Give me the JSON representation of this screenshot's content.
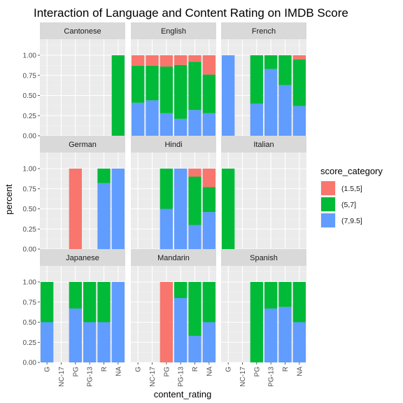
{
  "chart_data": {
    "type": "bar",
    "stacked": true,
    "title": "Interaction of Language and Content Rating on IMDB Score",
    "xlabel": "content_rating",
    "ylabel": "percent",
    "ylim": [
      0,
      1.2
    ],
    "yticks": [
      "0.00",
      "0.25",
      "0.50",
      "0.75",
      "1.00"
    ],
    "categories": [
      "G",
      "NC-17",
      "PG",
      "PG-13",
      "R",
      "NA"
    ],
    "legend": {
      "title": "score_category",
      "position": "right",
      "entries": [
        {
          "label": "(1.5,5]",
          "color": "#F8766D"
        },
        {
          "label": "(5,7]",
          "color": "#00BA38"
        },
        {
          "label": "(7,9.5]",
          "color": "#619CFF"
        }
      ]
    },
    "stack_order_bottom_to_top": [
      "(7,9.5]",
      "(5,7]",
      "(1.5,5]"
    ],
    "panels": [
      {
        "name": "Cantonese",
        "bars": {
          "NA": {
            "(1.5,5]": 0,
            "(5,7]": 1.0,
            "(7,9.5]": 0
          }
        }
      },
      {
        "name": "English",
        "bars": {
          "G": {
            "(1.5,5]": 0.13,
            "(5,7]": 0.46,
            "(7,9.5]": 0.41
          },
          "NC-17": {
            "(1.5,5]": 0.13,
            "(5,7]": 0.43,
            "(7,9.5]": 0.44
          },
          "PG": {
            "(1.5,5]": 0.14,
            "(5,7]": 0.58,
            "(7,9.5]": 0.28
          },
          "PG-13": {
            "(1.5,5]": 0.12,
            "(5,7]": 0.67,
            "(7,9.5]": 0.21
          },
          "R": {
            "(1.5,5]": 0.08,
            "(5,7]": 0.6,
            "(7,9.5]": 0.32
          },
          "NA": {
            "(1.5,5]": 0.24,
            "(5,7]": 0.48,
            "(7,9.5]": 0.28
          }
        }
      },
      {
        "name": "French",
        "bars": {
          "G": {
            "(1.5,5]": 0,
            "(5,7]": 0,
            "(7,9.5]": 1.0
          },
          "PG": {
            "(1.5,5]": 0,
            "(5,7]": 0.6,
            "(7,9.5]": 0.4
          },
          "PG-13": {
            "(1.5,5]": 0,
            "(5,7]": 0.17,
            "(7,9.5]": 0.83
          },
          "R": {
            "(1.5,5]": 0,
            "(5,7]": 0.37,
            "(7,9.5]": 0.63
          },
          "NA": {
            "(1.5,5]": 0.05,
            "(5,7]": 0.58,
            "(7,9.5]": 0.37
          }
        }
      },
      {
        "name": "German",
        "bars": {
          "PG": {
            "(1.5,5]": 1.0,
            "(5,7]": 0,
            "(7,9.5]": 0
          },
          "R": {
            "(1.5,5]": 0,
            "(5,7]": 0.18,
            "(7,9.5]": 0.82
          },
          "NA": {
            "(1.5,5]": 0,
            "(5,7]": 0,
            "(7,9.5]": 1.0
          }
        }
      },
      {
        "name": "Hindi",
        "bars": {
          "PG": {
            "(1.5,5]": 0,
            "(5,7]": 0.5,
            "(7,9.5]": 0.5
          },
          "PG-13": {
            "(1.5,5]": 0,
            "(5,7]": 0,
            "(7,9.5]": 1.0
          },
          "R": {
            "(1.5,5]": 0.1,
            "(5,7]": 0.6,
            "(7,9.5]": 0.3
          },
          "NA": {
            "(1.5,5]": 0.23,
            "(5,7]": 0.31,
            "(7,9.5]": 0.46
          }
        }
      },
      {
        "name": "Italian",
        "bars": {
          "G": {
            "(1.5,5]": 0,
            "(5,7]": 1.0,
            "(7,9.5]": 0
          }
        }
      },
      {
        "name": "Japanese",
        "bars": {
          "G": {
            "(1.5,5]": 0,
            "(5,7]": 0.5,
            "(7,9.5]": 0.5
          },
          "PG": {
            "(1.5,5]": 0,
            "(5,7]": 0.33,
            "(7,9.5]": 0.67
          },
          "PG-13": {
            "(1.5,5]": 0,
            "(5,7]": 0.5,
            "(7,9.5]": 0.5
          },
          "R": {
            "(1.5,5]": 0,
            "(5,7]": 0.5,
            "(7,9.5]": 0.5
          },
          "NA": {
            "(1.5,5]": 0,
            "(5,7]": 0,
            "(7,9.5]": 1.0
          }
        }
      },
      {
        "name": "Mandarin",
        "bars": {
          "PG": {
            "(1.5,5]": 1.0,
            "(5,7]": 0,
            "(7,9.5]": 0
          },
          "PG-13": {
            "(1.5,5]": 0,
            "(5,7]": 0.2,
            "(7,9.5]": 0.8
          },
          "R": {
            "(1.5,5]": 0,
            "(5,7]": 0.67,
            "(7,9.5]": 0.33
          },
          "NA": {
            "(1.5,5]": 0,
            "(5,7]": 0.5,
            "(7,9.5]": 0.5
          }
        }
      },
      {
        "name": "Spanish",
        "bars": {
          "PG": {
            "(1.5,5]": 0,
            "(5,7]": 1.0,
            "(7,9.5]": 0
          },
          "PG-13": {
            "(1.5,5]": 0,
            "(5,7]": 0.33,
            "(7,9.5]": 0.67
          },
          "R": {
            "(1.5,5]": 0,
            "(5,7]": 0.31,
            "(7,9.5]": 0.69
          },
          "NA": {
            "(1.5,5]": 0,
            "(5,7]": 0.5,
            "(7,9.5]": 0.5
          }
        }
      }
    ],
    "grid": true,
    "panel_background": "#EBEBEB",
    "strip_background": "#D9D9D9"
  }
}
